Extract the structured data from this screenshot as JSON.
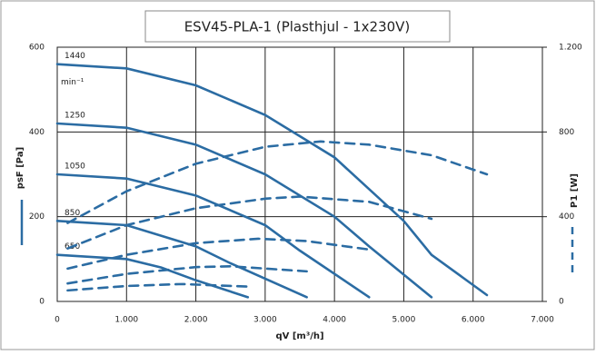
{
  "chart_data": {
    "type": "line",
    "title": "ESV45-PLA-1 (Plasthjul - 1x230V)",
    "x_label": "qV [m³/h]",
    "y_label": "psF [Pa]",
    "y2_label": "P1 [W]",
    "annotation": "min⁻¹",
    "xlim": [
      0,
      7000
    ],
    "xticks": [
      0,
      {
        "value": 1000,
        "label": "1.000"
      },
      {
        "value": 2000,
        "label": "2.000"
      },
      {
        "value": 3000,
        "label": "3.000"
      },
      {
        "value": 4000,
        "label": "4.000"
      },
      {
        "value": 5000,
        "label": "5.000"
      },
      {
        "value": 6000,
        "label": "6.000"
      },
      {
        "value": 7000,
        "label": "7.000"
      }
    ],
    "ylim": [
      0,
      600
    ],
    "yticks": [
      0,
      200,
      400,
      600
    ],
    "y2lim": [
      0,
      1200
    ],
    "y2ticks": [
      0,
      400,
      800,
      {
        "value": 1200,
        "label": "1.200"
      }
    ],
    "grid": true,
    "series": [
      {
        "name": "1440",
        "color": "#2b6ca3",
        "x": [
          0,
          1000,
          2000,
          3000,
          4000,
          5000,
          5400,
          6200
        ],
        "values": [
          560,
          550,
          510,
          440,
          340,
          190,
          110,
          15
        ]
      },
      {
        "name": "1250",
        "color": "#2b6ca3",
        "x": [
          0,
          1000,
          2000,
          3000,
          4000,
          4500,
          5400
        ],
        "values": [
          420,
          410,
          370,
          300,
          200,
          130,
          10
        ]
      },
      {
        "name": "1050",
        "color": "#2b6ca3",
        "x": [
          0,
          1000,
          2000,
          3000,
          3500,
          4500
        ],
        "values": [
          300,
          290,
          250,
          180,
          120,
          10
        ]
      },
      {
        "name": "850",
        "color": "#2b6ca3",
        "x": [
          0,
          1000,
          2000,
          2500,
          3600
        ],
        "values": [
          190,
          180,
          130,
          90,
          10
        ]
      },
      {
        "name": "650",
        "color": "#2b6ca3",
        "x": [
          0,
          1000,
          1500,
          2000,
          2750
        ],
        "values": [
          110,
          100,
          80,
          50,
          10
        ]
      },
      {
        "color": "#2b6ca3",
        "axis": "y2",
        "dashed": true,
        "x": [
          150,
          1000,
          2000,
          3000,
          3800,
          4500,
          5400,
          6200
        ],
        "values": [
          370,
          520,
          650,
          730,
          755,
          740,
          690,
          600
        ]
      },
      {
        "color": "#2b6ca3",
        "axis": "y2",
        "dashed": true,
        "x": [
          150,
          1000,
          2000,
          3000,
          3500,
          4500,
          5400
        ],
        "values": [
          250,
          360,
          440,
          485,
          495,
          470,
          390
        ]
      },
      {
        "color": "#2b6ca3",
        "axis": "y2",
        "dashed": true,
        "x": [
          150,
          1000,
          2000,
          2900,
          3600,
          4500
        ],
        "values": [
          155,
          220,
          275,
          296,
          285,
          245
        ]
      },
      {
        "color": "#2b6ca3",
        "axis": "y2",
        "dashed": true,
        "x": [
          150,
          1000,
          2000,
          2500,
          3600
        ],
        "values": [
          85,
          130,
          162,
          166,
          142
        ]
      },
      {
        "color": "#2b6ca3",
        "axis": "y2",
        "dashed": true,
        "x": [
          150,
          1000,
          1800,
          2750
        ],
        "values": [
          52,
          73,
          82,
          70
        ]
      }
    ]
  }
}
